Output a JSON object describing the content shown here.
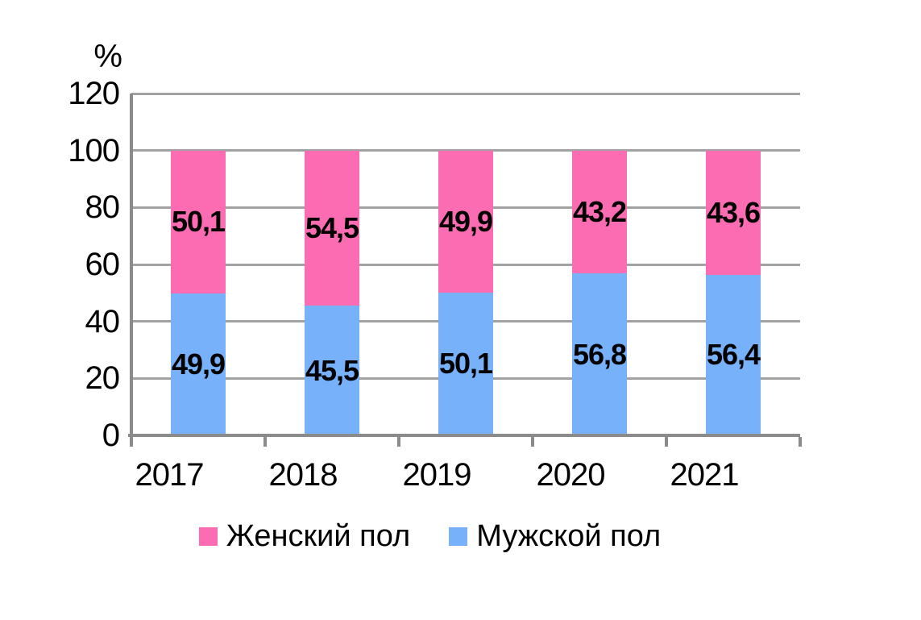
{
  "chart_data": {
    "type": "bar",
    "stacked": true,
    "ylabel": "%",
    "categories": [
      "2017",
      "2018",
      "2019",
      "2020",
      "2021"
    ],
    "series": [
      {
        "key": "female",
        "name": "Женский пол",
        "color": "#fb6cb3",
        "values": [
          50.1,
          54.5,
          49.9,
          43.2,
          43.6
        ],
        "value_labels": [
          "50,1",
          "54,5",
          "49,9",
          "43,2",
          "43,6"
        ]
      },
      {
        "key": "male",
        "name": "Мужской пол",
        "color": "#76b1f9",
        "values": [
          49.9,
          45.5,
          50.1,
          56.8,
          56.4
        ],
        "value_labels": [
          "49,9",
          "45,5",
          "50,1",
          "56,8",
          "56,4"
        ]
      }
    ],
    "ylim": [
      0,
      120
    ],
    "yticks": [
      "0",
      "20",
      "40",
      "60",
      "80",
      "100",
      "120"
    ],
    "grid": true,
    "legend_position": "bottom",
    "value_label_color": "#000000",
    "gridline_color": "#a2a2a2",
    "axis_color": "#8b8b8b"
  }
}
